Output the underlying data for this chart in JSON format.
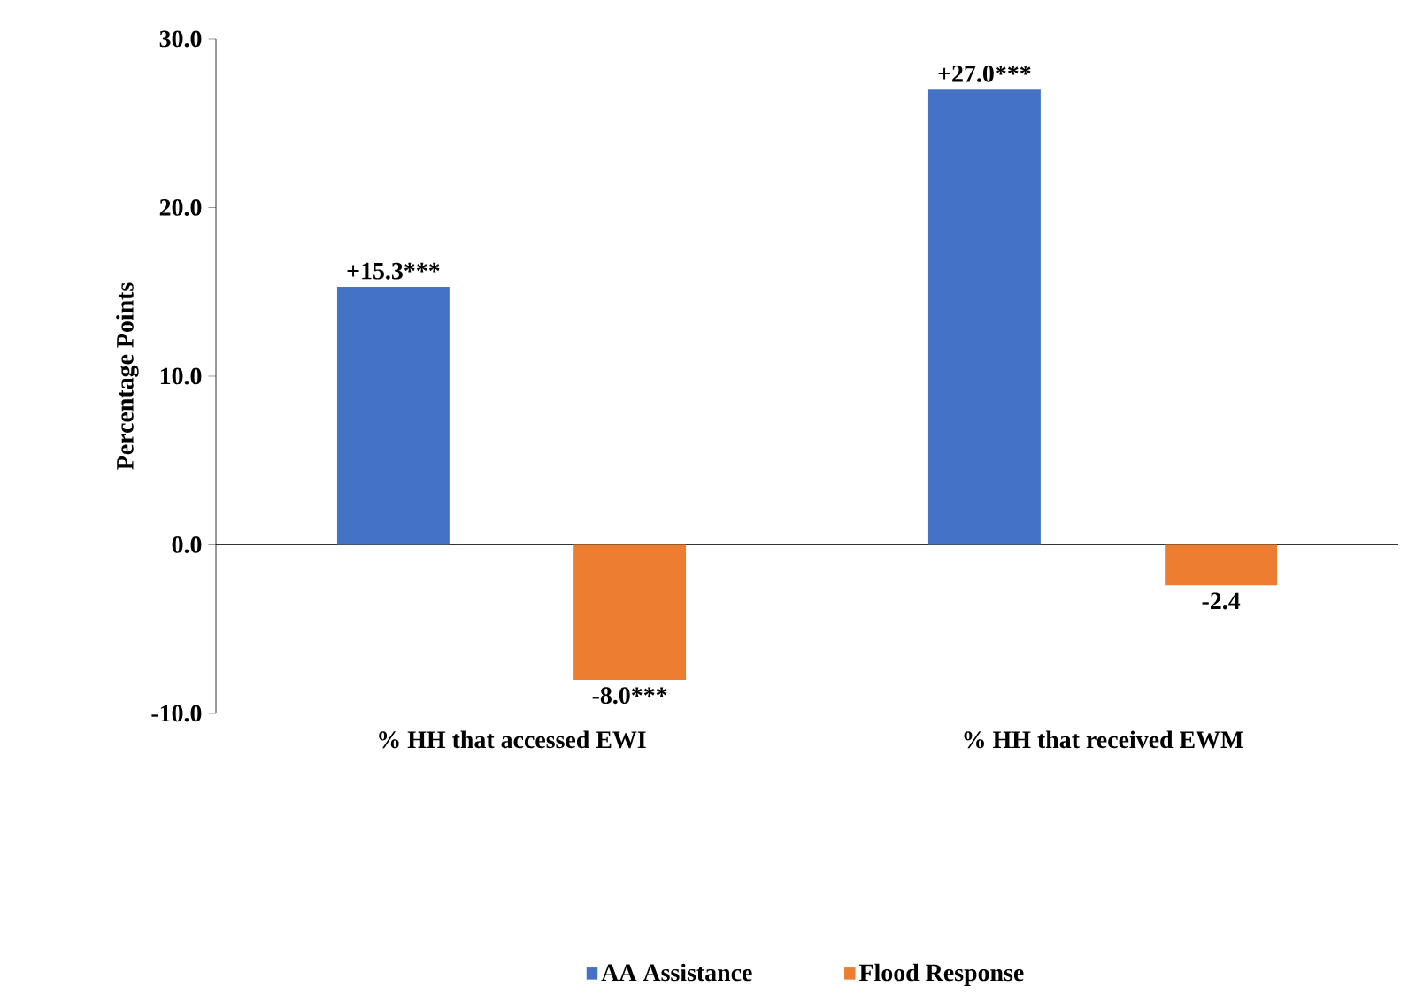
{
  "chart_data": {
    "type": "bar",
    "ylabel": "Percentage Points",
    "categories": [
      "% HH that accessed EWI",
      "% HH that received EWM"
    ],
    "series": [
      {
        "name": "AA Assistance",
        "color": "#4472c4",
        "values": [
          15.3,
          27.0
        ],
        "value_labels": [
          "+15.3***",
          "+27.0***"
        ]
      },
      {
        "name": "Flood Response",
        "color": "#ed7d31",
        "values": [
          -8.0,
          -2.4
        ],
        "value_labels": [
          "-8.0***",
          "-2.4"
        ]
      }
    ],
    "ylim": [
      -10,
      30
    ],
    "yticks": [
      {
        "value": -10,
        "label": "-10.0"
      },
      {
        "value": 0,
        "label": "0.0"
      },
      {
        "value": 10,
        "label": "10.0"
      },
      {
        "value": 20,
        "label": "20.0"
      },
      {
        "value": 30,
        "label": "30.0"
      }
    ],
    "legend": "bottom"
  }
}
